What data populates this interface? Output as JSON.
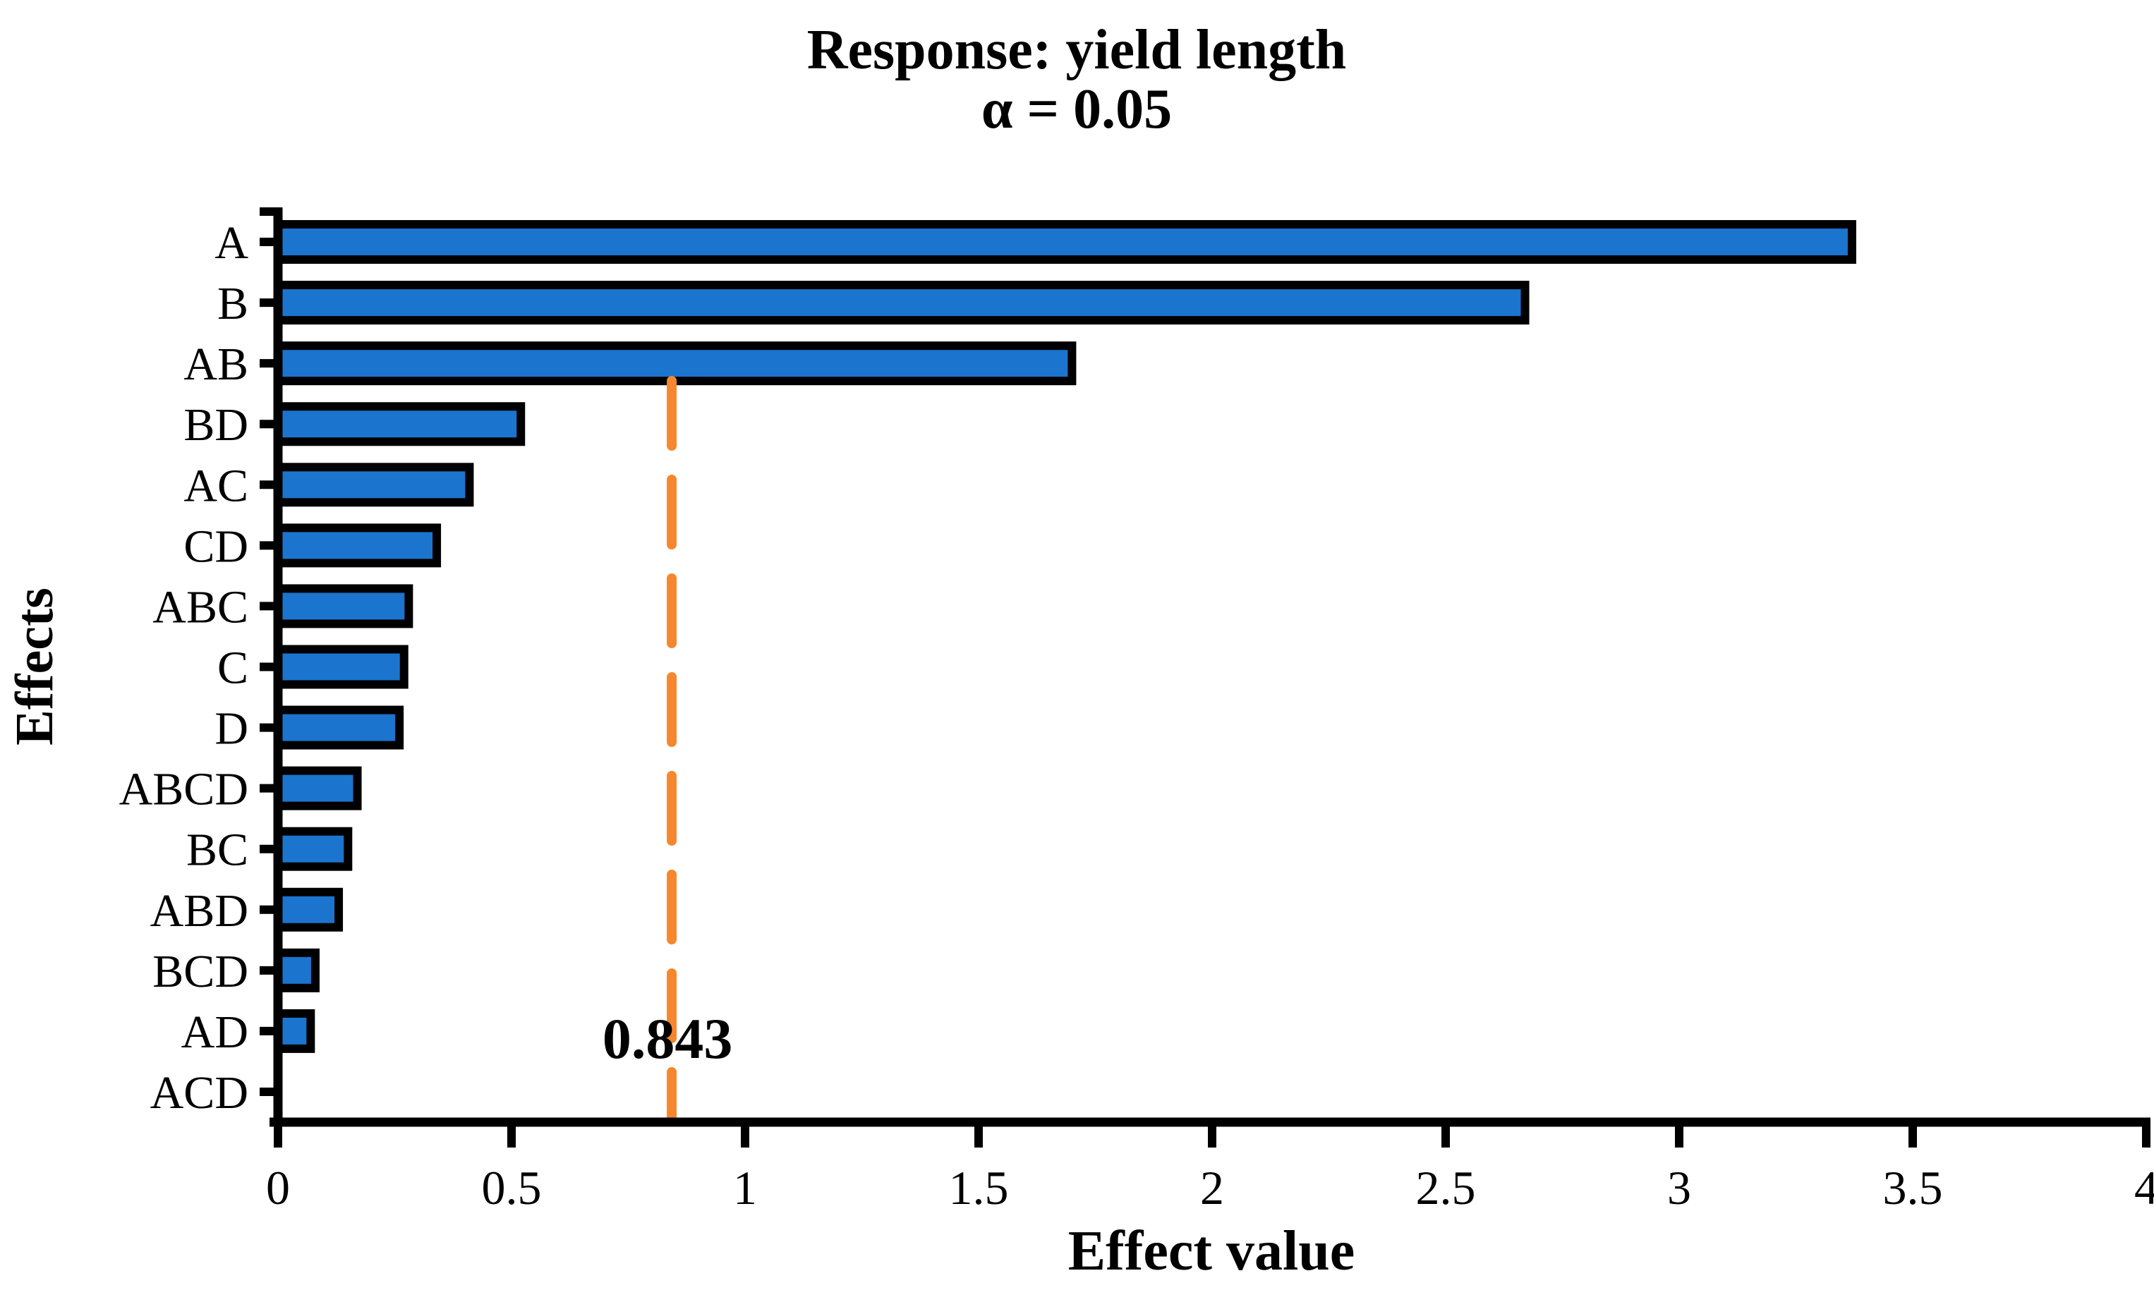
{
  "chart_data": {
    "type": "bar",
    "orientation": "horizontal",
    "title": "Response: yield length",
    "subtitle": "α = 0.05",
    "xlabel": "Effect value",
    "ylabel": "Effects",
    "categories": [
      "A",
      "B",
      "AB",
      "BD",
      "AC",
      "CD",
      "ABC",
      "C",
      "D",
      "ABCD",
      "BC",
      "ABD",
      "BCD",
      "AD",
      "ACD"
    ],
    "values": [
      3.37,
      2.67,
      1.7,
      0.52,
      0.41,
      0.34,
      0.28,
      0.27,
      0.26,
      0.17,
      0.15,
      0.13,
      0.08,
      0.07,
      0
    ],
    "xlim": [
      0,
      4
    ],
    "xticks": [
      "0",
      "0.5",
      "1",
      "1.5",
      "2",
      "2.5",
      "3",
      "3.5",
      "4"
    ],
    "grid": false,
    "legend": "none",
    "reference_line": {
      "value": 0.843,
      "label": "0.843",
      "style": "dashed",
      "color": "#F6872E"
    },
    "colors": {
      "bar_fill": "#1B74CE",
      "bar_stroke": "#000000",
      "axis": "#000000",
      "reference_line": "#F6872E"
    }
  }
}
